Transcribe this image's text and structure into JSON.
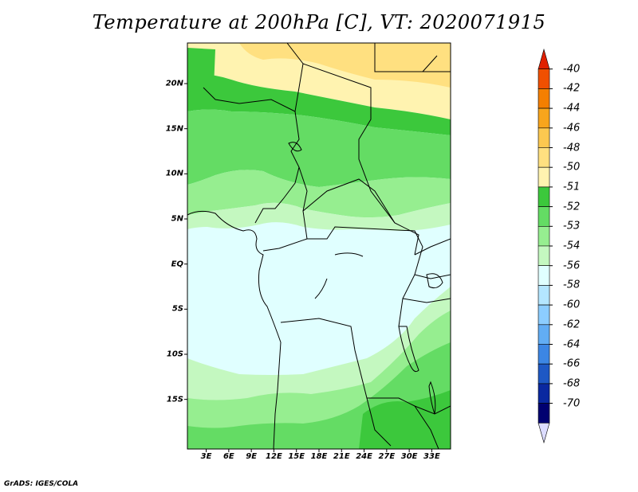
{
  "title": "Temperature at 200hPa [C], VT: 2020071915",
  "footer": "GrADS: IGES/COLA",
  "lat_labels": [
    {
      "label": "20N",
      "lat": 20
    },
    {
      "label": "15N",
      "lat": 15
    },
    {
      "label": "10N",
      "lat": 10
    },
    {
      "label": "5N",
      "lat": 5
    },
    {
      "label": "EQ",
      "lat": 0
    },
    {
      "label": "5S",
      "lat": -5
    },
    {
      "label": "10S",
      "lat": -10
    },
    {
      "label": "15S",
      "lat": -15
    }
  ],
  "lon_labels": [
    {
      "label": "3E",
      "lon": 3
    },
    {
      "label": "6E",
      "lon": 6
    },
    {
      "label": "9E",
      "lon": 9
    },
    {
      "label": "12E",
      "lon": 12
    },
    {
      "label": "15E",
      "lon": 15
    },
    {
      "label": "18E",
      "lon": 18
    },
    {
      "label": "21E",
      "lon": 21
    },
    {
      "label": "24E",
      "lon": 24
    },
    {
      "label": "27E",
      "lon": 27
    },
    {
      "label": "30E",
      "lon": 30
    },
    {
      "label": "33E",
      "lon": 33
    }
  ],
  "colorbar": {
    "labels": [
      "-40",
      "-42",
      "-44",
      "-46",
      "-48",
      "-50",
      "-51",
      "-52",
      "-53",
      "-54",
      "-56",
      "-58",
      "-60",
      "-62",
      "-64",
      "-66",
      "-68",
      "-70"
    ],
    "colors": [
      "#e02000",
      "#f05000",
      "#f47f00",
      "#f8a51c",
      "#fcc850",
      "#ffe080",
      "#fff3b0",
      "#3cc83c",
      "#64dc64",
      "#96ee90",
      "#c4f8c0",
      "#e0ffff",
      "#b4e6ff",
      "#8ccdff",
      "#62adf4",
      "#3c86e4",
      "#1e58c4",
      "#0a28a0",
      "#000070",
      "#dcdcff"
    ]
  },
  "field_colors": {
    "c50": "#ffe080",
    "c51": "#fff3b0",
    "c52": "#3cc83c",
    "c53": "#64dc64",
    "c54": "#96ee90",
    "c55": "#c4f8c0",
    "c56": "#e0ffff"
  }
}
